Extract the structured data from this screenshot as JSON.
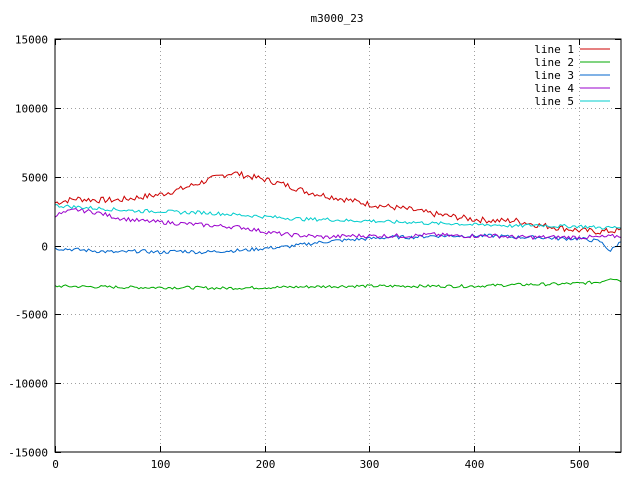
{
  "chart_data": {
    "type": "line",
    "title": "m3000_23",
    "xlabel": "",
    "ylabel": "",
    "xlim": [
      0,
      540
    ],
    "ylim": [
      -15000,
      15000
    ],
    "x_ticks": [
      0,
      100,
      200,
      300,
      400,
      500
    ],
    "y_ticks": [
      -15000,
      -10000,
      -5000,
      0,
      5000,
      10000,
      15000
    ],
    "grid": true,
    "legend_position": "top-right",
    "series": [
      {
        "name": "line 1",
        "color": "#cc0000",
        "x": [
          0,
          20,
          40,
          60,
          80,
          100,
          120,
          140,
          160,
          170,
          180,
          200,
          220,
          240,
          260,
          280,
          300,
          320,
          340,
          360,
          380,
          400,
          420,
          440,
          460,
          480,
          500,
          520,
          540
        ],
        "y": [
          3100,
          3400,
          3300,
          3300,
          3500,
          3700,
          4100,
          4600,
          5100,
          5300,
          5100,
          4800,
          4400,
          3900,
          3600,
          3300,
          3000,
          2800,
          2600,
          2300,
          2100,
          1900,
          1800,
          1800,
          1500,
          1300,
          1100,
          1000,
          1100
        ]
      },
      {
        "name": "line 2",
        "color": "#00aa00",
        "x": [
          0,
          40,
          80,
          120,
          160,
          200,
          240,
          280,
          320,
          360,
          400,
          440,
          480,
          500,
          520,
          530,
          540
        ],
        "y": [
          -2950,
          -3000,
          -3050,
          -3050,
          -3100,
          -3050,
          -3000,
          -2950,
          -2950,
          -2950,
          -2950,
          -2850,
          -2800,
          -2750,
          -2650,
          -2350,
          -2550
        ]
      },
      {
        "name": "line 3",
        "color": "#0066cc",
        "x": [
          0,
          20,
          40,
          60,
          80,
          100,
          120,
          140,
          160,
          180,
          200,
          220,
          240,
          260,
          280,
          300,
          320,
          340,
          360,
          380,
          400,
          420,
          440,
          460,
          480,
          500,
          520,
          530,
          540
        ],
        "y": [
          -200,
          -300,
          -400,
          -500,
          -400,
          -500,
          -400,
          -500,
          -400,
          -350,
          -200,
          -100,
          100,
          300,
          400,
          500,
          600,
          600,
          700,
          700,
          700,
          700,
          600,
          600,
          500,
          500,
          300,
          -400,
          300
        ]
      },
      {
        "name": "line 4",
        "color": "#9900cc",
        "x": [
          0,
          20,
          40,
          60,
          80,
          100,
          120,
          140,
          160,
          180,
          200,
          220,
          240,
          260,
          280,
          300,
          320,
          340,
          360,
          380,
          400,
          420,
          440,
          460,
          480,
          500,
          520,
          540
        ],
        "y": [
          2200,
          2600,
          2400,
          2000,
          1800,
          1700,
          1600,
          1500,
          1400,
          1300,
          1000,
          800,
          700,
          600,
          700,
          700,
          700,
          700,
          800,
          700,
          700,
          700,
          600,
          600,
          600,
          600,
          600,
          700
        ]
      },
      {
        "name": "line 5",
        "color": "#00cccc",
        "x": [
          0,
          20,
          40,
          60,
          80,
          100,
          120,
          140,
          160,
          180,
          200,
          220,
          240,
          260,
          280,
          300,
          320,
          340,
          360,
          380,
          400,
          420,
          440,
          460,
          480,
          500,
          520,
          540
        ],
        "y": [
          2900,
          2800,
          2700,
          2600,
          2500,
          2500,
          2400,
          2400,
          2300,
          2200,
          2100,
          2000,
          1900,
          1900,
          1800,
          1800,
          1700,
          1700,
          1600,
          1600,
          1500,
          1500,
          1400,
          1500,
          1400,
          1400,
          1300,
          1300
        ]
      }
    ]
  }
}
